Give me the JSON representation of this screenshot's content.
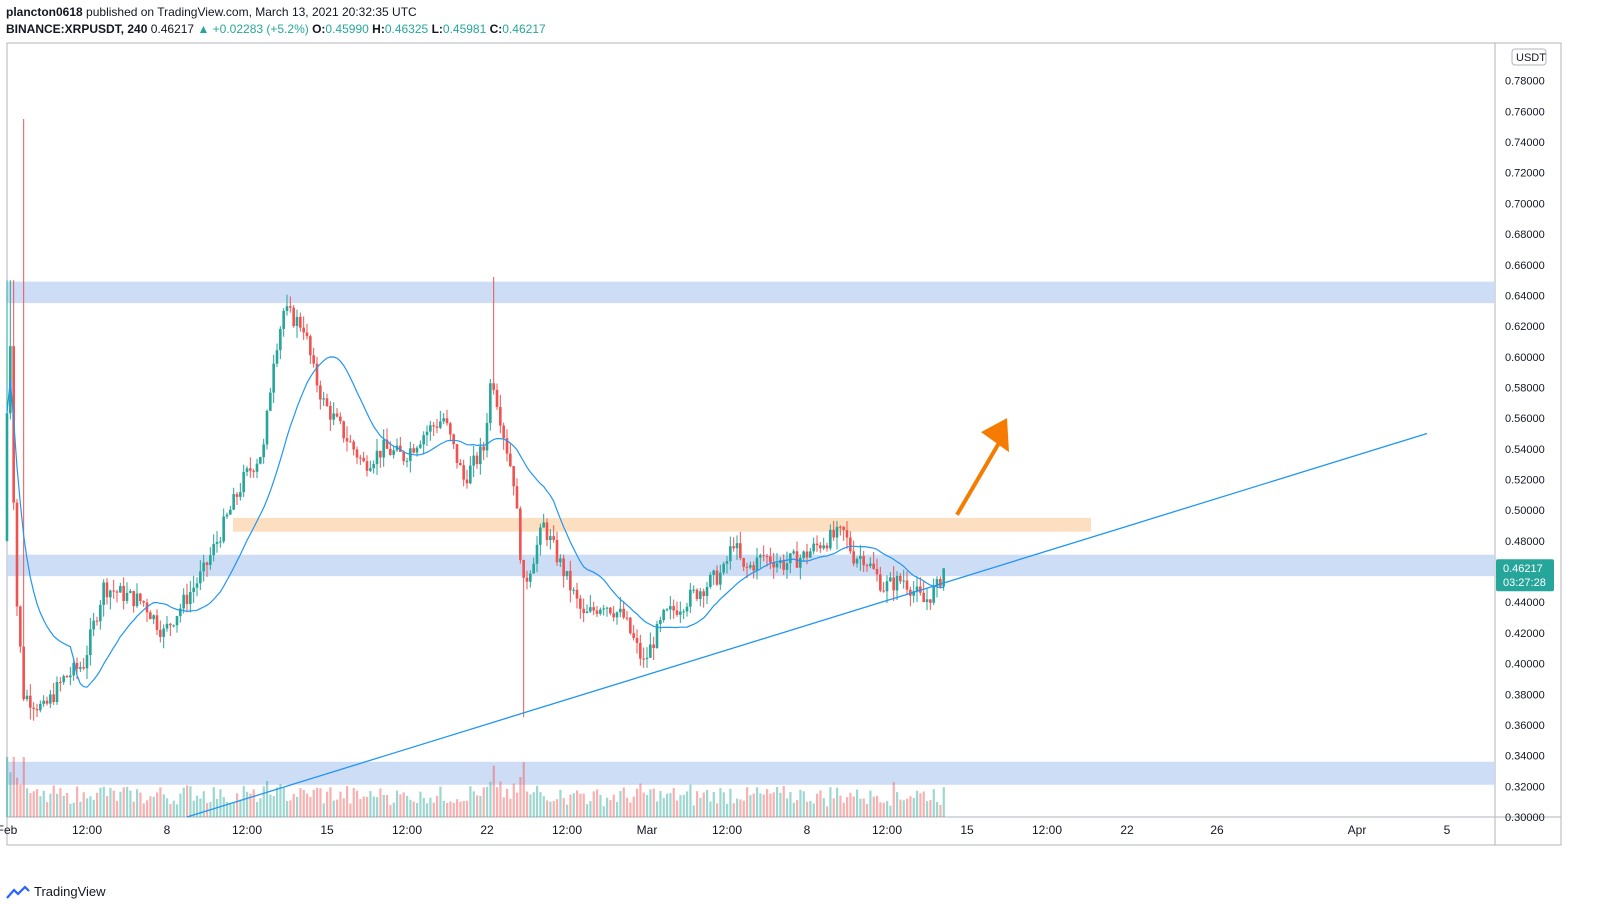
{
  "header": {
    "user": "plancton0618",
    "published": "published on TradingView.com, March 13, 2021 20:32:35 UTC",
    "symbol": "BINANCE:XRPUSDT, 240",
    "last": "0.46217",
    "change": "▲ +0.02283 (+5.2%)",
    "o_label": "O:",
    "o_val": "0.45990",
    "h_label": "H:",
    "h_val": "0.46325",
    "l_label": "L:",
    "l_val": "0.45981",
    "c_label": "C:",
    "c_val": "0.46217"
  },
  "footer": {
    "brand": "TradingView"
  },
  "colors": {
    "up": "#26a69a",
    "down": "#ef5350",
    "ma": "#2196f3",
    "zone_blue": "#c5d7f5",
    "zone_orange": "#fcd9b6",
    "arrow": "#f57c00"
  },
  "chart_data": {
    "type": "candlestick",
    "currency": "USDT",
    "ylim": [
      0.3,
      0.8
    ],
    "y_ticks": [
      0.3,
      0.32,
      0.34,
      0.36,
      0.38,
      0.4,
      0.42,
      0.44,
      0.46,
      0.48,
      0.5,
      0.52,
      0.54,
      0.56,
      0.58,
      0.6,
      0.62,
      0.64,
      0.66,
      0.68,
      0.7,
      0.72,
      0.74,
      0.76,
      0.78
    ],
    "y_tick_labels": [
      "0.30000",
      "0.32000",
      "0.34000",
      "0.36000",
      "0.38000",
      "0.40000",
      "0.42000",
      "0.44000",
      "0.46000",
      "0.48000",
      "0.50000",
      "0.52000",
      "0.54000",
      "0.56000",
      "0.58000",
      "0.60000",
      "0.62000",
      "0.64000",
      "0.66000",
      "0.68000",
      "0.70000",
      "0.72000",
      "0.74000",
      "0.76000",
      "0.78000"
    ],
    "x_ticks": [
      {
        "label": "Feb",
        "day": 0
      },
      {
        "label": "12:00",
        "day": 4
      },
      {
        "label": "8",
        "day": 8
      },
      {
        "label": "12:00",
        "day": 12
      },
      {
        "label": "15",
        "day": 16
      },
      {
        "label": "12:00",
        "day": 20
      },
      {
        "label": "22",
        "day": 24
      },
      {
        "label": "12:00",
        "day": 28
      },
      {
        "label": "Mar",
        "day": 32
      },
      {
        "label": "12:00",
        "day": 36
      },
      {
        "label": "8",
        "day": 40
      },
      {
        "label": "12:00",
        "day": 44
      },
      {
        "label": "15",
        "day": 48
      },
      {
        "label": "12:00",
        "day": 52
      },
      {
        "label": "22",
        "day": 56
      },
      {
        "label": "26",
        "day": 60.5
      },
      {
        "label": "Apr",
        "day": 67.5
      },
      {
        "label": "5",
        "day": 72
      }
    ],
    "price_path": [
      [
        0,
        0.48
      ],
      [
        0.3,
        0.63
      ],
      [
        0.6,
        0.45
      ],
      [
        1,
        0.38
      ],
      [
        2,
        0.37
      ],
      [
        3,
        0.39
      ],
      [
        4,
        0.4
      ],
      [
        5,
        0.45
      ],
      [
        6,
        0.445
      ],
      [
        7,
        0.44
      ],
      [
        8,
        0.42
      ],
      [
        9,
        0.44
      ],
      [
        10,
        0.46
      ],
      [
        11,
        0.49
      ],
      [
        12,
        0.52
      ],
      [
        13,
        0.54
      ],
      [
        13.5,
        0.6
      ],
      [
        14,
        0.63
      ],
      [
        15,
        0.62
      ],
      [
        15.5,
        0.59
      ],
      [
        16,
        0.57
      ],
      [
        17,
        0.55
      ],
      [
        18,
        0.53
      ],
      [
        19,
        0.54
      ],
      [
        20,
        0.535
      ],
      [
        21,
        0.55
      ],
      [
        22,
        0.56
      ],
      [
        23,
        0.52
      ],
      [
        24,
        0.54
      ],
      [
        24.4,
        0.59
      ],
      [
        25,
        0.55
      ],
      [
        25.5,
        0.52
      ],
      [
        26,
        0.45
      ],
      [
        27,
        0.49
      ],
      [
        28,
        0.46
      ],
      [
        29,
        0.43
      ],
      [
        30,
        0.44
      ],
      [
        31,
        0.43
      ],
      [
        32,
        0.4
      ],
      [
        33,
        0.43
      ],
      [
        34,
        0.44
      ],
      [
        35,
        0.45
      ],
      [
        36,
        0.46
      ],
      [
        36.5,
        0.48
      ],
      [
        37,
        0.46
      ],
      [
        38,
        0.47
      ],
      [
        39,
        0.465
      ],
      [
        40,
        0.47
      ],
      [
        41,
        0.48
      ],
      [
        42,
        0.485
      ],
      [
        42.5,
        0.47
      ],
      [
        43,
        0.47
      ],
      [
        44,
        0.45
      ],
      [
        45,
        0.455
      ],
      [
        46,
        0.44
      ],
      [
        46.7,
        0.45
      ],
      [
        47,
        0.462
      ]
    ],
    "moving_average": {
      "period": 20,
      "color": "#2196f3"
    },
    "last_price_label": "0.46217",
    "countdown_label": "03:27:28",
    "zones": [
      {
        "type": "resistance",
        "low": 0.635,
        "high": 0.649
      },
      {
        "type": "support",
        "low": 0.457,
        "high": 0.471
      },
      {
        "type": "support",
        "low": 0.321,
        "high": 0.336
      },
      {
        "type": "breakout",
        "low": 0.486,
        "high": 0.495
      }
    ],
    "trendline": {
      "from": {
        "day": 9,
        "price": 0.3
      },
      "to": {
        "day": 71,
        "price": 0.55
      }
    },
    "arrow": {
      "from": {
        "day": 47.5,
        "price": 0.497
      },
      "to": {
        "day": 50,
        "price": 0.56
      }
    }
  }
}
